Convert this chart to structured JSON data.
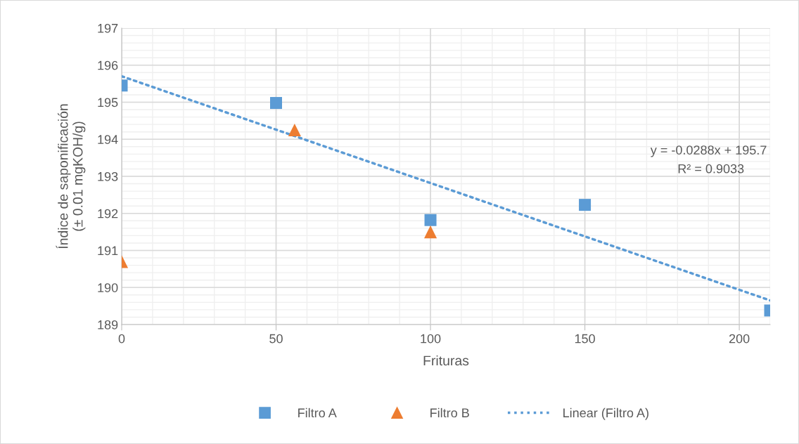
{
  "chart_data": {
    "type": "scatter",
    "xlabel": "Frituras",
    "ylabel": "Índice de saponificación\n(± 0.01 mgKOH/g)",
    "xlim": [
      0,
      210
    ],
    "xticks": [
      0,
      50,
      100,
      150,
      200
    ],
    "ylim": [
      189,
      197
    ],
    "yticks": [
      189,
      190,
      191,
      192,
      193,
      194,
      195,
      196,
      197
    ],
    "grid": true,
    "legend": "bottom",
    "annotations": [
      "y = -0.0288x + 195.7",
      "R² = 0.9033"
    ],
    "series": [
      {
        "name": "Filtro A",
        "color": "#5b9bd5",
        "marker": "square",
        "x": [
          0,
          50,
          100,
          150,
          210
        ],
        "values": [
          195.45,
          194.98,
          191.82,
          192.23,
          189.38
        ]
      },
      {
        "name": "Filtro B",
        "color": "#ed7d31",
        "marker": "triangle",
        "x": [
          0,
          56,
          100
        ],
        "values": [
          190.7,
          194.25,
          191.5
        ]
      },
      {
        "name": "Linear (Filtro A)",
        "type": "line",
        "color": "#5b9bd5",
        "line_style": "dotted",
        "marker": "none",
        "x": [
          0,
          210
        ],
        "values": [
          195.7,
          189.65
        ]
      }
    ]
  }
}
